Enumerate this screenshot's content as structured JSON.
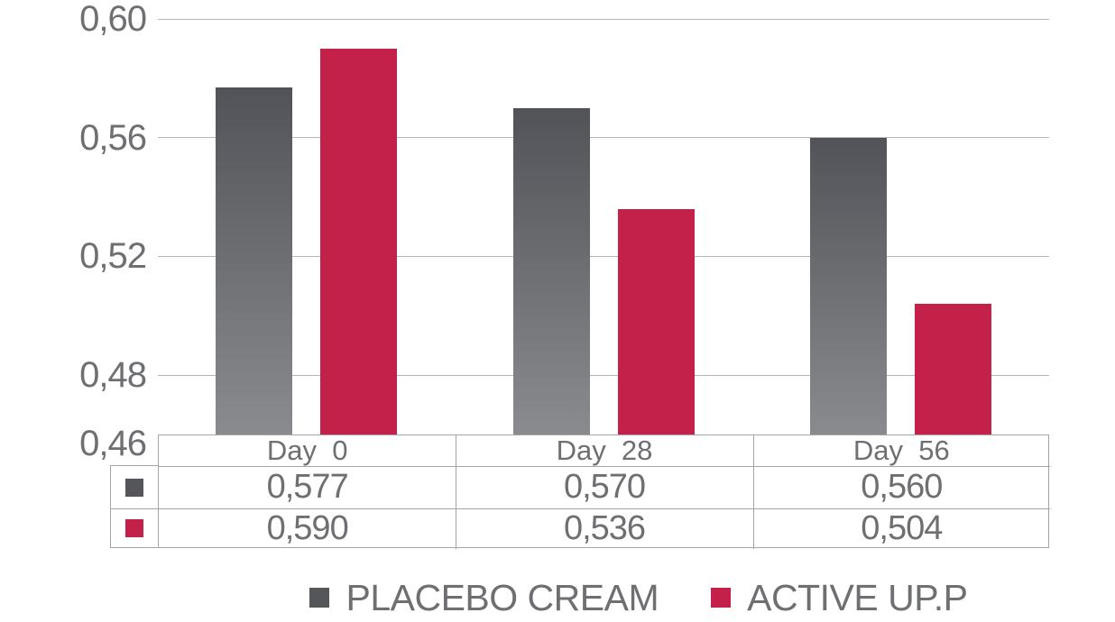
{
  "chart_data": {
    "type": "bar",
    "categories": [
      "Day 0",
      "Day 28",
      "Day 56"
    ],
    "series": [
      {
        "name": "PLACEBO CREAM",
        "color": "#55565a",
        "values": [
          0.577,
          0.57,
          0.56
        ]
      },
      {
        "name": "ACTIVE UP.P",
        "color": "#c32149",
        "values": [
          0.59,
          0.536,
          0.504
        ]
      }
    ],
    "title": "",
    "xlabel": "",
    "ylabel": "",
    "ylim": [
      0.46,
      0.6
    ],
    "yticks": [
      0.6,
      0.56,
      0.52,
      0.48,
      0.46
    ],
    "ytick_labels": [
      "0,60",
      "0,56",
      "0,52",
      "0,48",
      "0,46"
    ],
    "decimal_separator": ",",
    "grid": true,
    "legend_position": "bottom",
    "data_table": {
      "column_headers": [
        "Day  0",
        "Day  28",
        "Day  56"
      ],
      "rows": [
        {
          "series": "PLACEBO CREAM",
          "key_color": "#55565a",
          "cells": [
            "0,577",
            "0,570",
            "0,560"
          ]
        },
        {
          "series": "ACTIVE UP.P",
          "key_color": "#c32149",
          "cells": [
            "0,590",
            "0,536",
            "0,504"
          ]
        }
      ]
    },
    "legend": [
      {
        "label": "PLACEBO CREAM",
        "color": "#55565a"
      },
      {
        "label": "ACTIVE UP.P",
        "color": "#c32149"
      }
    ]
  },
  "colors": {
    "bar_gray_top": "#525358",
    "bar_gray_bottom": "#8a8b8e",
    "bar_red": "#c32149",
    "gridline": "#b4b5b7",
    "table_border": "#a3a5a7",
    "text": "#6e6f72",
    "background": "#ffffff"
  }
}
